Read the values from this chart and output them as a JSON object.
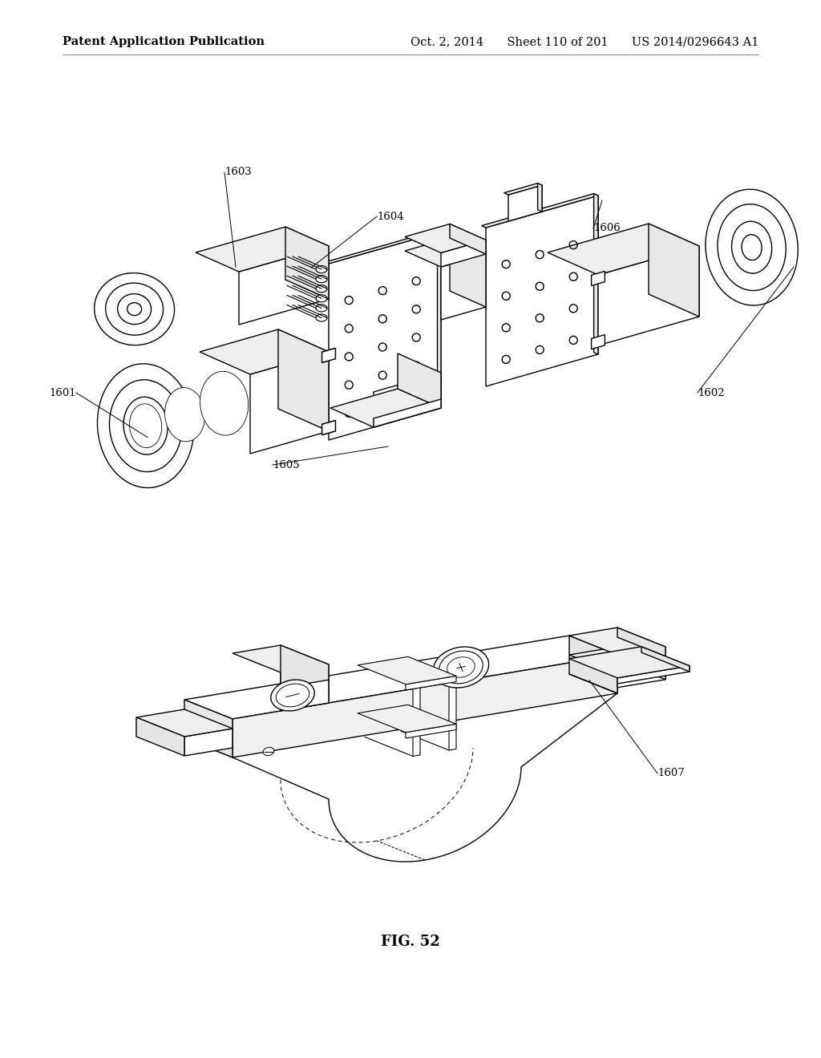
{
  "header_left": "Patent Application Publication",
  "header_right": "Oct. 2, 2014  Sheet 110 of 201  US 2014/0296643 A1",
  "figure_caption": "FIG. 52",
  "bg_color": "#ffffff",
  "line_color": "#000000",
  "header_fontsize": 10.5,
  "caption_fontsize": 13,
  "label_fontsize": 9.5,
  "lw": 1.0
}
